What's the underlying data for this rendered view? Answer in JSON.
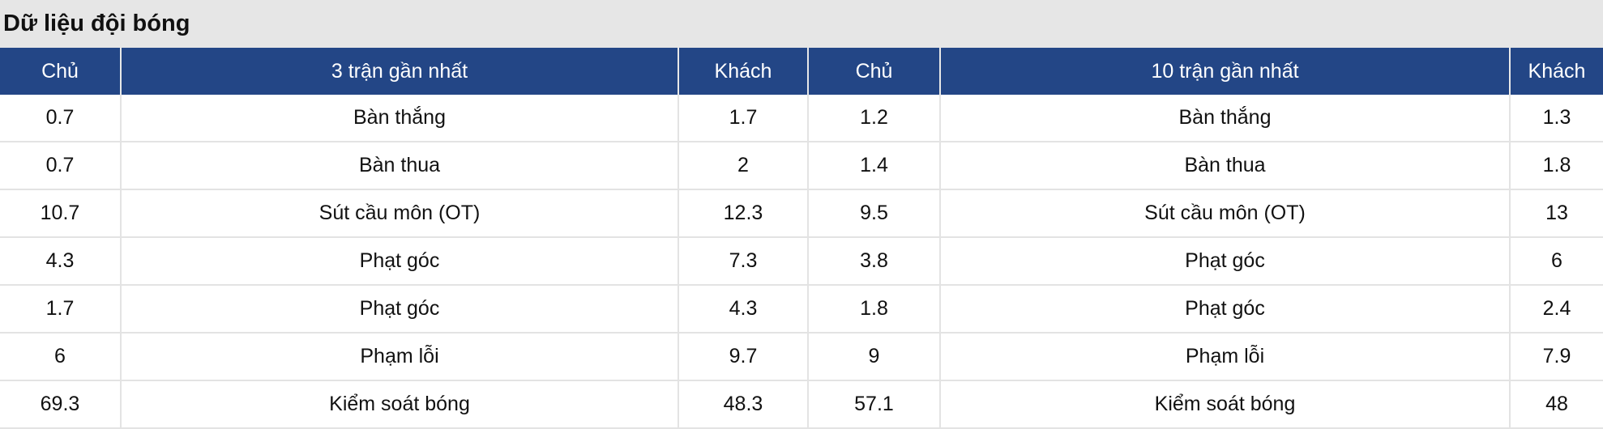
{
  "title": "Dữ liệu đội bóng",
  "colors": {
    "header_bg": "#234686",
    "title_bg": "#e6e6e6"
  },
  "headers": [
    "Chủ",
    "3 trận gần nhất",
    "Khách",
    "Chủ",
    "10 trận gần nhất",
    "Khách"
  ],
  "rows": [
    [
      "0.7",
      "Bàn thắng",
      "1.7",
      "1.2",
      "Bàn thắng",
      "1.3"
    ],
    [
      "0.7",
      "Bàn thua",
      "2",
      "1.4",
      "Bàn thua",
      "1.8"
    ],
    [
      "10.7",
      "Sút cầu môn (OT)",
      "12.3",
      "9.5",
      "Sút cầu môn (OT)",
      "13"
    ],
    [
      "4.3",
      "Phạt góc",
      "7.3",
      "3.8",
      "Phạt góc",
      "6"
    ],
    [
      "1.7",
      "Phạt góc",
      "4.3",
      "1.8",
      "Phạt góc",
      "2.4"
    ],
    [
      "6",
      "Phạm lỗi",
      "9.7",
      "9",
      "Phạm lỗi",
      "7.9"
    ],
    [
      "69.3",
      "Kiểm soát bóng",
      "48.3",
      "57.1",
      "Kiểm soát bóng",
      "48"
    ]
  ]
}
